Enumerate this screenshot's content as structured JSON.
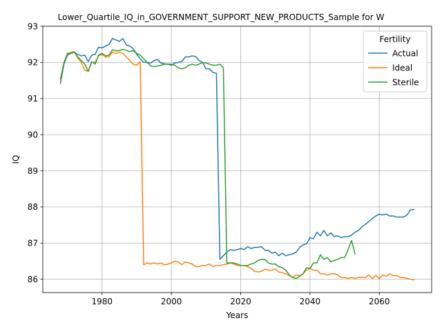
{
  "chart_data": {
    "type": "line",
    "title": "Lower_Quartile_IQ_in_GOVERNMENT_SUPPORT_NEW_PRODUCTS_Sample for W",
    "xlabel": "Years",
    "ylabel": "IQ",
    "xlim": [
      1962.9,
      2075.1
    ],
    "ylim": [
      85.63,
      93.0
    ],
    "x_ticks": [
      1980,
      2000,
      2020,
      2040,
      2060
    ],
    "y_ticks": [
      86,
      87,
      88,
      89,
      90,
      91,
      92,
      93
    ],
    "grid": true,
    "legend": {
      "title": "Fertility",
      "placement": "top-right"
    },
    "series": [
      {
        "name": "Actual",
        "color": "#1f77b4",
        "points": [
          [
            1968,
            91.42
          ],
          [
            1969,
            91.95
          ],
          [
            1970,
            92.2
          ],
          [
            1971,
            92.25
          ],
          [
            1972,
            92.28
          ],
          [
            1973,
            92.22
          ],
          [
            1974,
            92.18
          ],
          [
            1975,
            92.2
          ],
          [
            1976,
            92.02
          ],
          [
            1977,
            92.2
          ],
          [
            1978,
            92.22
          ],
          [
            1979,
            92.42
          ],
          [
            1980,
            92.4
          ],
          [
            1981,
            92.45
          ],
          [
            1982,
            92.5
          ],
          [
            1983,
            92.66
          ],
          [
            1984,
            92.62
          ],
          [
            1985,
            92.58
          ],
          [
            1986,
            92.66
          ],
          [
            1987,
            92.48
          ],
          [
            1988,
            92.45
          ],
          [
            1989,
            92.38
          ],
          [
            1990,
            92.22
          ],
          [
            1991,
            92.1
          ],
          [
            1992,
            92.0
          ],
          [
            1993,
            92.0
          ],
          [
            1994,
            91.98
          ],
          [
            1995,
            92.05
          ],
          [
            1996,
            92.08
          ],
          [
            1997,
            91.98
          ],
          [
            1998,
            91.96
          ],
          [
            1999,
            91.95
          ],
          [
            2000,
            91.92
          ],
          [
            2001,
            91.98
          ],
          [
            2002,
            92.0
          ],
          [
            2003,
            92.02
          ],
          [
            2004,
            92.15
          ],
          [
            2005,
            92.15
          ],
          [
            2006,
            92.18
          ],
          [
            2007,
            92.16
          ],
          [
            2008,
            92.05
          ],
          [
            2009,
            92.0
          ],
          [
            2010,
            91.82
          ],
          [
            2011,
            91.82
          ],
          [
            2012,
            91.72
          ],
          [
            2013,
            91.7
          ],
          [
            2014,
            86.55
          ],
          [
            2015,
            86.65
          ],
          [
            2016,
            86.75
          ],
          [
            2017,
            86.82
          ],
          [
            2018,
            86.8
          ],
          [
            2019,
            86.82
          ],
          [
            2020,
            86.85
          ],
          [
            2021,
            86.82
          ],
          [
            2022,
            86.9
          ],
          [
            2023,
            86.85
          ],
          [
            2024,
            86.88
          ],
          [
            2025,
            86.88
          ],
          [
            2026,
            86.9
          ],
          [
            2027,
            86.8
          ],
          [
            2028,
            86.8
          ],
          [
            2029,
            86.72
          ],
          [
            2030,
            86.75
          ],
          [
            2031,
            86.65
          ],
          [
            2032,
            86.72
          ],
          [
            2033,
            86.65
          ],
          [
            2034,
            86.68
          ],
          [
            2035,
            86.7
          ],
          [
            2036,
            86.75
          ],
          [
            2037,
            86.88
          ],
          [
            2038,
            86.95
          ],
          [
            2039,
            86.98
          ],
          [
            2040,
            87.15
          ],
          [
            2041,
            87.12
          ],
          [
            2042,
            87.3
          ],
          [
            2043,
            87.2
          ],
          [
            2044,
            87.35
          ],
          [
            2045,
            87.2
          ],
          [
            2046,
            87.28
          ],
          [
            2047,
            87.18
          ],
          [
            2048,
            87.2
          ],
          [
            2049,
            87.15
          ],
          [
            2050,
            87.18
          ],
          [
            2051,
            87.18
          ],
          [
            2052,
            87.22
          ],
          [
            2053,
            87.3
          ],
          [
            2054,
            87.35
          ],
          [
            2055,
            87.45
          ],
          [
            2056,
            87.52
          ],
          [
            2057,
            87.6
          ],
          [
            2058,
            87.68
          ],
          [
            2059,
            87.75
          ],
          [
            2060,
            87.8
          ],
          [
            2061,
            87.78
          ],
          [
            2062,
            87.8
          ],
          [
            2063,
            87.75
          ],
          [
            2064,
            87.75
          ],
          [
            2065,
            87.72
          ],
          [
            2066,
            87.72
          ],
          [
            2067,
            87.72
          ],
          [
            2068,
            87.78
          ],
          [
            2069,
            87.92
          ],
          [
            2070,
            87.93
          ]
        ]
      },
      {
        "name": "Ideal",
        "color": "#ff7f0e",
        "points": [
          [
            1968,
            91.5
          ],
          [
            1969,
            92.0
          ],
          [
            1970,
            92.22
          ],
          [
            1971,
            92.28
          ],
          [
            1972,
            92.3
          ],
          [
            1973,
            92.12
          ],
          [
            1974,
            92.0
          ],
          [
            1975,
            91.78
          ],
          [
            1976,
            91.75
          ],
          [
            1977,
            92.0
          ],
          [
            1978,
            92.0
          ],
          [
            1979,
            92.18
          ],
          [
            1980,
            92.22
          ],
          [
            1981,
            92.15
          ],
          [
            1982,
            92.15
          ],
          [
            1983,
            92.28
          ],
          [
            1984,
            92.25
          ],
          [
            1985,
            92.28
          ],
          [
            1986,
            92.25
          ],
          [
            1987,
            92.15
          ],
          [
            1988,
            92.05
          ],
          [
            1989,
            91.95
          ],
          [
            1990,
            91.92
          ],
          [
            1991,
            92.02
          ],
          [
            1992,
            86.4
          ],
          [
            1993,
            86.45
          ],
          [
            1994,
            86.42
          ],
          [
            1995,
            86.45
          ],
          [
            1996,
            86.42
          ],
          [
            1997,
            86.45
          ],
          [
            1998,
            86.4
          ],
          [
            1999,
            86.42
          ],
          [
            2000,
            86.45
          ],
          [
            2001,
            86.5
          ],
          [
            2002,
            86.48
          ],
          [
            2003,
            86.4
          ],
          [
            2004,
            86.48
          ],
          [
            2005,
            86.45
          ],
          [
            2006,
            86.42
          ],
          [
            2007,
            86.35
          ],
          [
            2008,
            86.35
          ],
          [
            2009,
            86.38
          ],
          [
            2010,
            86.38
          ],
          [
            2011,
            86.42
          ],
          [
            2012,
            86.35
          ],
          [
            2013,
            86.38
          ],
          [
            2014,
            86.38
          ],
          [
            2015,
            86.4
          ],
          [
            2016,
            86.42
          ],
          [
            2017,
            86.45
          ],
          [
            2018,
            86.42
          ],
          [
            2019,
            86.38
          ],
          [
            2020,
            86.38
          ],
          [
            2021,
            86.38
          ],
          [
            2022,
            86.35
          ],
          [
            2023,
            86.3
          ],
          [
            2024,
            86.22
          ],
          [
            2025,
            86.2
          ],
          [
            2026,
            86.22
          ],
          [
            2027,
            86.28
          ],
          [
            2028,
            86.25
          ],
          [
            2029,
            86.25
          ],
          [
            2030,
            86.28
          ],
          [
            2031,
            86.2
          ],
          [
            2032,
            86.18
          ],
          [
            2033,
            86.15
          ],
          [
            2034,
            86.1
          ],
          [
            2035,
            86.05
          ],
          [
            2036,
            86.12
          ],
          [
            2037,
            86.1
          ],
          [
            2038,
            86.15
          ],
          [
            2039,
            86.25
          ],
          [
            2040,
            86.3
          ],
          [
            2041,
            86.25
          ],
          [
            2042,
            86.25
          ],
          [
            2043,
            86.15
          ],
          [
            2044,
            86.15
          ],
          [
            2045,
            86.12
          ],
          [
            2046,
            86.15
          ],
          [
            2047,
            86.15
          ],
          [
            2048,
            86.12
          ],
          [
            2049,
            86.05
          ],
          [
            2050,
            86.05
          ],
          [
            2051,
            86.02
          ],
          [
            2052,
            86.05
          ],
          [
            2053,
            86.02
          ],
          [
            2054,
            86.05
          ],
          [
            2055,
            86.05
          ],
          [
            2056,
            86.05
          ],
          [
            2057,
            86.12
          ],
          [
            2058,
            86.02
          ],
          [
            2059,
            86.1
          ],
          [
            2060,
            86.02
          ],
          [
            2061,
            86.12
          ],
          [
            2062,
            86.08
          ],
          [
            2063,
            86.15
          ],
          [
            2064,
            86.1
          ],
          [
            2065,
            86.1
          ],
          [
            2066,
            86.05
          ],
          [
            2067,
            86.05
          ],
          [
            2068,
            86.02
          ],
          [
            2069,
            86.0
          ],
          [
            2070,
            85.98
          ]
        ]
      },
      {
        "name": "Sterile",
        "color": "#2ca02c",
        "points": [
          [
            1968,
            91.55
          ],
          [
            1969,
            91.98
          ],
          [
            1970,
            92.25
          ],
          [
            1971,
            92.25
          ],
          [
            1972,
            92.28
          ],
          [
            1973,
            92.15
          ],
          [
            1974,
            92.05
          ],
          [
            1975,
            91.95
          ],
          [
            1976,
            91.75
          ],
          [
            1977,
            92.02
          ],
          [
            1978,
            91.95
          ],
          [
            1979,
            92.2
          ],
          [
            1980,
            92.25
          ],
          [
            1981,
            92.18
          ],
          [
            1982,
            92.2
          ],
          [
            1983,
            92.35
          ],
          [
            1984,
            92.32
          ],
          [
            1985,
            92.33
          ],
          [
            1986,
            92.36
          ],
          [
            1987,
            92.33
          ],
          [
            1988,
            92.3
          ],
          [
            1989,
            92.32
          ],
          [
            1990,
            92.25
          ],
          [
            1991,
            92.2
          ],
          [
            1992,
            92.1
          ],
          [
            1993,
            92.0
          ],
          [
            1994,
            91.9
          ],
          [
            1995,
            91.88
          ],
          [
            1996,
            91.9
          ],
          [
            1997,
            91.92
          ],
          [
            1998,
            91.95
          ],
          [
            1999,
            91.95
          ],
          [
            2000,
            91.95
          ],
          [
            2001,
            91.92
          ],
          [
            2002,
            91.85
          ],
          [
            2003,
            91.82
          ],
          [
            2004,
            91.85
          ],
          [
            2005,
            91.92
          ],
          [
            2006,
            91.95
          ],
          [
            2007,
            91.92
          ],
          [
            2008,
            91.95
          ],
          [
            2009,
            92.0
          ],
          [
            2010,
            91.98
          ],
          [
            2011,
            91.95
          ],
          [
            2012,
            91.92
          ],
          [
            2013,
            91.92
          ],
          [
            2014,
            91.95
          ],
          [
            2015,
            91.85
          ],
          [
            2016,
            86.45
          ],
          [
            2017,
            86.45
          ],
          [
            2018,
            86.45
          ],
          [
            2019,
            86.42
          ],
          [
            2020,
            86.38
          ],
          [
            2021,
            86.38
          ],
          [
            2022,
            86.38
          ],
          [
            2023,
            86.42
          ],
          [
            2024,
            86.45
          ],
          [
            2025,
            86.52
          ],
          [
            2026,
            86.55
          ],
          [
            2027,
            86.55
          ],
          [
            2028,
            86.45
          ],
          [
            2029,
            86.42
          ],
          [
            2030,
            86.42
          ],
          [
            2031,
            86.35
          ],
          [
            2032,
            86.32
          ],
          [
            2033,
            86.25
          ],
          [
            2034,
            86.12
          ],
          [
            2035,
            86.05
          ],
          [
            2036,
            86.02
          ],
          [
            2037,
            86.08
          ],
          [
            2038,
            86.15
          ],
          [
            2039,
            86.32
          ],
          [
            2040,
            86.3
          ],
          [
            2041,
            86.45
          ],
          [
            2042,
            86.45
          ],
          [
            2043,
            86.68
          ],
          [
            2044,
            86.55
          ],
          [
            2045,
            86.6
          ],
          [
            2046,
            86.48
          ],
          [
            2047,
            86.52
          ],
          [
            2048,
            86.55
          ],
          [
            2049,
            86.6
          ],
          [
            2050,
            86.6
          ],
          [
            2051,
            86.82
          ],
          [
            2052,
            87.07
          ],
          [
            2053,
            86.7
          ]
        ]
      }
    ]
  }
}
